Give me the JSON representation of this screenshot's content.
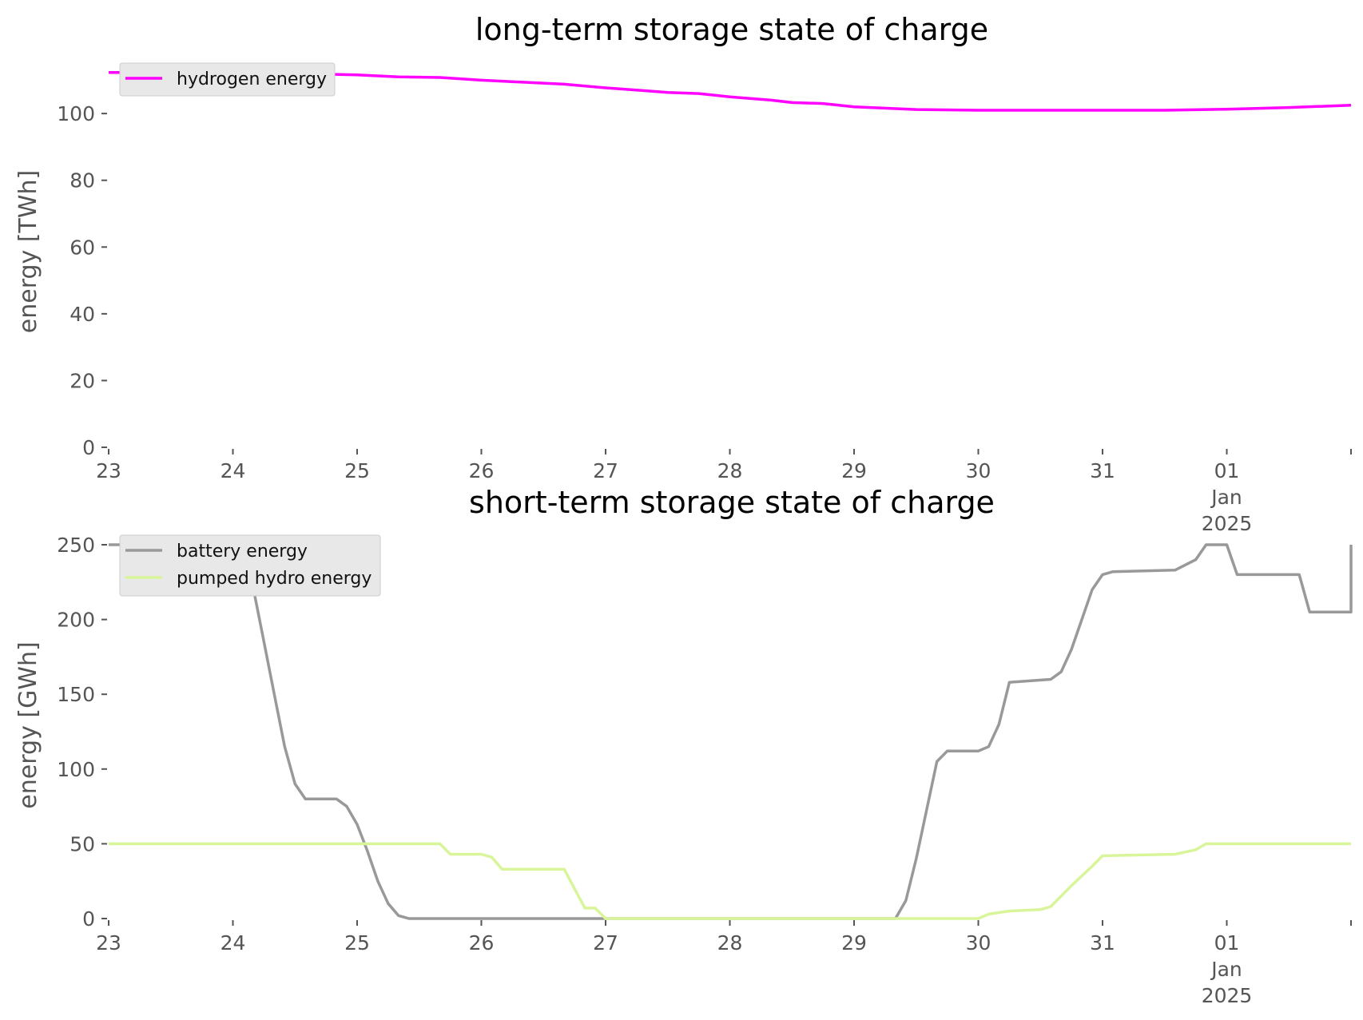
{
  "chart_data": [
    {
      "type": "line",
      "title": "long-term storage state of charge",
      "xlabel": "",
      "ylabel": "energy [TWh]",
      "ylim": [
        0,
        112
      ],
      "yticks": [
        0,
        20,
        40,
        60,
        80,
        100
      ],
      "xlim": [
        "2024-12-23",
        "2025-01-02"
      ],
      "xtick_labels": [
        {
          "date": "2024-12-23",
          "lines": [
            "23"
          ]
        },
        {
          "date": "2024-12-24",
          "lines": [
            "24"
          ]
        },
        {
          "date": "2024-12-25",
          "lines": [
            "25"
          ]
        },
        {
          "date": "2024-12-26",
          "lines": [
            "26"
          ]
        },
        {
          "date": "2024-12-27",
          "lines": [
            "27"
          ]
        },
        {
          "date": "2024-12-28",
          "lines": [
            "28"
          ]
        },
        {
          "date": "2024-12-29",
          "lines": [
            "29"
          ]
        },
        {
          "date": "2024-12-30",
          "lines": [
            "30"
          ]
        },
        {
          "date": "2024-12-31",
          "lines": [
            "31"
          ]
        },
        {
          "date": "2025-01-01",
          "lines": [
            "01",
            "Jan",
            "2025"
          ]
        },
        {
          "date": "2025-01-02",
          "lines": []
        }
      ],
      "grid": false,
      "legend_position": "top-left",
      "series": [
        {
          "name": "hydrogen energy",
          "color": "#ff00ff",
          "points": [
            [
              "2024-12-23 00:00",
              112.3
            ],
            [
              "2024-12-23 12:00",
              112.3
            ],
            [
              "2024-12-24 00:00",
              112.2
            ],
            [
              "2024-12-24 12:00",
              112.0
            ],
            [
              "2024-12-25 00:00",
              111.6
            ],
            [
              "2024-12-25 08:00",
              111.0
            ],
            [
              "2024-12-25 16:00",
              110.8
            ],
            [
              "2024-12-26 00:00",
              110.0
            ],
            [
              "2024-12-26 08:00",
              109.4
            ],
            [
              "2024-12-26 16:00",
              108.8
            ],
            [
              "2024-12-27 00:00",
              107.7
            ],
            [
              "2024-12-27 08:00",
              106.8
            ],
            [
              "2024-12-27 12:00",
              106.3
            ],
            [
              "2024-12-27 18:00",
              106.0
            ],
            [
              "2024-12-28 00:00",
              105.0
            ],
            [
              "2024-12-28 08:00",
              104.0
            ],
            [
              "2024-12-28 12:00",
              103.3
            ],
            [
              "2024-12-28 18:00",
              103.0
            ],
            [
              "2024-12-29 00:00",
              102.0
            ],
            [
              "2024-12-29 12:00",
              101.2
            ],
            [
              "2024-12-30 00:00",
              101.0
            ],
            [
              "2024-12-31 00:00",
              101.0
            ],
            [
              "2024-12-31 12:00",
              101.0
            ],
            [
              "2025-01-01 00:00",
              101.3
            ],
            [
              "2025-01-01 12:00",
              101.8
            ],
            [
              "2025-01-02 00:00",
              102.5
            ]
          ]
        }
      ]
    },
    {
      "type": "line",
      "title": "short-term storage state of charge",
      "xlabel": "",
      "ylabel": "energy [GWh]",
      "ylim": [
        0,
        250
      ],
      "yticks": [
        0,
        50,
        100,
        150,
        200,
        250
      ],
      "xlim": [
        "2024-12-23",
        "2025-01-02"
      ],
      "xtick_labels": [
        {
          "date": "2024-12-23",
          "lines": [
            "23"
          ]
        },
        {
          "date": "2024-12-24",
          "lines": [
            "24"
          ]
        },
        {
          "date": "2024-12-25",
          "lines": [
            "25"
          ]
        },
        {
          "date": "2024-12-26",
          "lines": [
            "26"
          ]
        },
        {
          "date": "2024-12-27",
          "lines": [
            "27"
          ]
        },
        {
          "date": "2024-12-28",
          "lines": [
            "28"
          ]
        },
        {
          "date": "2024-12-29",
          "lines": [
            "29"
          ]
        },
        {
          "date": "2024-12-30",
          "lines": [
            "30"
          ]
        },
        {
          "date": "2024-12-31",
          "lines": [
            "31"
          ]
        },
        {
          "date": "2025-01-01",
          "lines": [
            "01",
            "Jan",
            "2025"
          ]
        },
        {
          "date": "2025-01-02",
          "lines": []
        }
      ],
      "grid": false,
      "legend_position": "top-left",
      "series": [
        {
          "name": "battery energy",
          "color": "#999999",
          "points": [
            [
              "2024-12-23 00:00",
              250
            ],
            [
              "2024-12-24 02:00",
              250
            ],
            [
              "2024-12-24 04:00",
              220
            ],
            [
              "2024-12-24 06:00",
              185
            ],
            [
              "2024-12-24 08:00",
              150
            ],
            [
              "2024-12-24 10:00",
              115
            ],
            [
              "2024-12-24 12:00",
              90
            ],
            [
              "2024-12-24 14:00",
              80
            ],
            [
              "2024-12-24 20:00",
              80
            ],
            [
              "2024-12-24 22:00",
              75
            ],
            [
              "2024-12-25 00:00",
              63
            ],
            [
              "2024-12-25 02:00",
              45
            ],
            [
              "2024-12-25 04:00",
              25
            ],
            [
              "2024-12-25 06:00",
              10
            ],
            [
              "2024-12-25 08:00",
              2
            ],
            [
              "2024-12-25 10:00",
              0
            ],
            [
              "2024-12-29 08:00",
              0
            ],
            [
              "2024-12-29 10:00",
              12
            ],
            [
              "2024-12-29 12:00",
              40
            ],
            [
              "2024-12-29 16:00",
              105
            ],
            [
              "2024-12-29 18:00",
              112
            ],
            [
              "2024-12-30 00:00",
              112
            ],
            [
              "2024-12-30 02:00",
              115
            ],
            [
              "2024-12-30 04:00",
              130
            ],
            [
              "2024-12-30 06:00",
              158
            ],
            [
              "2024-12-30 14:00",
              160
            ],
            [
              "2024-12-30 16:00",
              165
            ],
            [
              "2024-12-30 18:00",
              180
            ],
            [
              "2024-12-30 22:00",
              220
            ],
            [
              "2024-12-31 00:00",
              230
            ],
            [
              "2024-12-31 02:00",
              232
            ],
            [
              "2024-12-31 14:00",
              233
            ],
            [
              "2024-12-31 18:00",
              240
            ],
            [
              "2024-12-31 20:00",
              250
            ],
            [
              "2025-01-01 00:00",
              250
            ],
            [
              "2025-01-01 02:00",
              230
            ],
            [
              "2025-01-01 14:00",
              230
            ],
            [
              "2025-01-01 16:00",
              205
            ],
            [
              "2025-01-02 00:00",
              205
            ],
            [
              "2025-01-02 02:00",
              210
            ],
            [
              "2025-01-02 04:00",
              230
            ],
            [
              "2025-01-02 06:00",
              250
            ],
            [
              "2025-01-03 00:00",
              250
            ]
          ]
        },
        {
          "name": "pumped hydro energy",
          "color": "#d9f59a",
          "points": [
            [
              "2024-12-23 00:00",
              50
            ],
            [
              "2024-12-25 16:00",
              50
            ],
            [
              "2024-12-25 18:00",
              43
            ],
            [
              "2024-12-26 00:00",
              43
            ],
            [
              "2024-12-26 02:00",
              41
            ],
            [
              "2024-12-26 04:00",
              33
            ],
            [
              "2024-12-26 16:00",
              33
            ],
            [
              "2024-12-26 18:00",
              20
            ],
            [
              "2024-12-26 20:00",
              7
            ],
            [
              "2024-12-26 22:00",
              7
            ],
            [
              "2024-12-27 00:00",
              0
            ],
            [
              "2024-12-30 00:00",
              0
            ],
            [
              "2024-12-30 02:00",
              3
            ],
            [
              "2024-12-30 06:00",
              5
            ],
            [
              "2024-12-30 12:00",
              6
            ],
            [
              "2024-12-30 14:00",
              8
            ],
            [
              "2024-12-30 18:00",
              22
            ],
            [
              "2024-12-30 22:00",
              35
            ],
            [
              "2024-12-31 00:00",
              42
            ],
            [
              "2024-12-31 14:00",
              43
            ],
            [
              "2024-12-31 18:00",
              46
            ],
            [
              "2024-12-31 20:00",
              50
            ],
            [
              "2025-01-03 00:00",
              50
            ]
          ]
        }
      ]
    }
  ]
}
